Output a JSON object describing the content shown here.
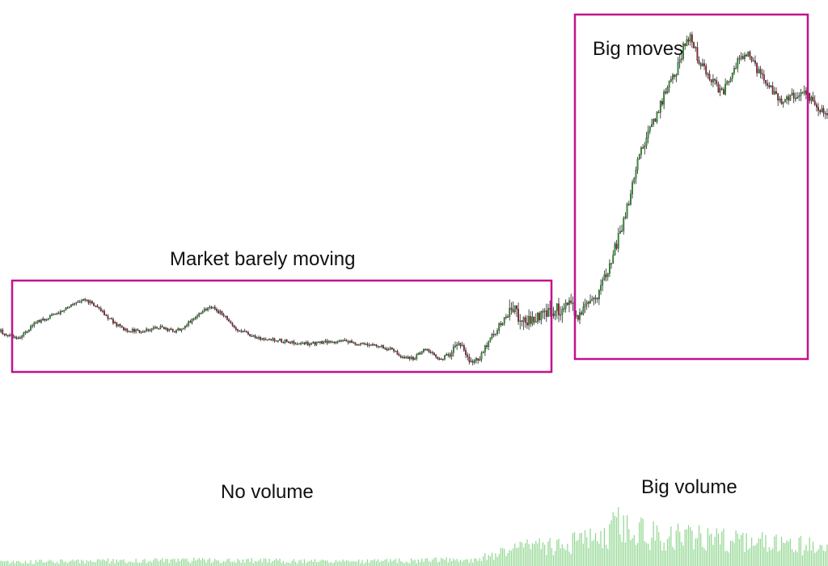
{
  "chart_data": {
    "type": "candlestick",
    "title": "",
    "xlabel": "",
    "ylabel": "",
    "grid": false,
    "legend": "none",
    "colors": {
      "up": "#2ca02c",
      "down": "#a31f34",
      "wick": "#222222",
      "volume": "#8fd68f",
      "highlight_box": "#c0148c"
    },
    "annotations": [
      {
        "id": "market-barely-moving",
        "text": "Market barely moving"
      },
      {
        "id": "big-moves",
        "text": "Big moves"
      },
      {
        "id": "no-volume",
        "text": "No volume"
      },
      {
        "id": "big-volume",
        "text": "Big volume"
      }
    ],
    "price_anchors": [
      [
        0,
        410
      ],
      [
        10,
        420
      ],
      [
        20,
        398
      ],
      [
        30,
        390
      ],
      [
        40,
        378
      ],
      [
        48,
        370
      ],
      [
        55,
        380
      ],
      [
        62,
        395
      ],
      [
        70,
        408
      ],
      [
        80,
        410
      ],
      [
        90,
        405
      ],
      [
        100,
        410
      ],
      [
        108,
        398
      ],
      [
        115,
        385
      ],
      [
        121,
        380
      ],
      [
        128,
        392
      ],
      [
        135,
        408
      ],
      [
        145,
        418
      ],
      [
        155,
        420
      ],
      [
        165,
        423
      ],
      [
        175,
        425
      ],
      [
        185,
        423
      ],
      [
        195,
        422
      ],
      [
        205,
        426
      ],
      [
        215,
        428
      ],
      [
        222,
        432
      ],
      [
        228,
        440
      ],
      [
        235,
        444
      ],
      [
        242,
        430
      ],
      [
        250,
        445
      ],
      [
        256,
        438
      ],
      [
        260,
        425
      ],
      [
        264,
        432
      ],
      [
        268,
        450
      ],
      [
        272,
        445
      ],
      [
        276,
        428
      ],
      [
        281,
        412
      ],
      [
        287,
        395
      ],
      [
        292,
        383
      ],
      [
        298,
        400
      ],
      [
        306,
        390
      ],
      [
        312,
        385
      ],
      [
        318,
        382
      ],
      [
        324,
        378
      ],
      [
        329,
        390
      ],
      [
        334,
        375
      ],
      [
        339,
        370
      ],
      [
        344,
        345
      ],
      [
        348,
        320
      ],
      [
        352,
        295
      ],
      [
        356,
        265
      ],
      [
        360,
        230
      ],
      [
        364,
        190
      ],
      [
        368,
        170
      ],
      [
        372,
        150
      ],
      [
        377,
        125
      ],
      [
        381,
        100
      ],
      [
        385,
        90
      ],
      [
        389,
        60
      ],
      [
        393,
        45
      ],
      [
        397,
        70
      ],
      [
        401,
        85
      ],
      [
        406,
        100
      ],
      [
        411,
        115
      ],
      [
        416,
        95
      ],
      [
        421,
        70
      ],
      [
        426,
        65
      ],
      [
        431,
        85
      ],
      [
        436,
        100
      ],
      [
        441,
        115
      ],
      [
        446,
        125
      ],
      [
        451,
        120
      ],
      [
        456,
        115
      ],
      [
        461,
        120
      ],
      [
        466,
        135
      ],
      [
        471,
        140
      ]
    ],
    "volume_anchors": [
      [
        0,
        5
      ],
      [
        60,
        7
      ],
      [
        120,
        8
      ],
      [
        200,
        6
      ],
      [
        270,
        9
      ],
      [
        300,
        25
      ],
      [
        330,
        32
      ],
      [
        343,
        38
      ],
      [
        352,
        65
      ],
      [
        360,
        48
      ],
      [
        380,
        40
      ],
      [
        400,
        38
      ],
      [
        430,
        32
      ],
      [
        460,
        28
      ],
      [
        471,
        22
      ]
    ],
    "bar_count": 472
  }
}
